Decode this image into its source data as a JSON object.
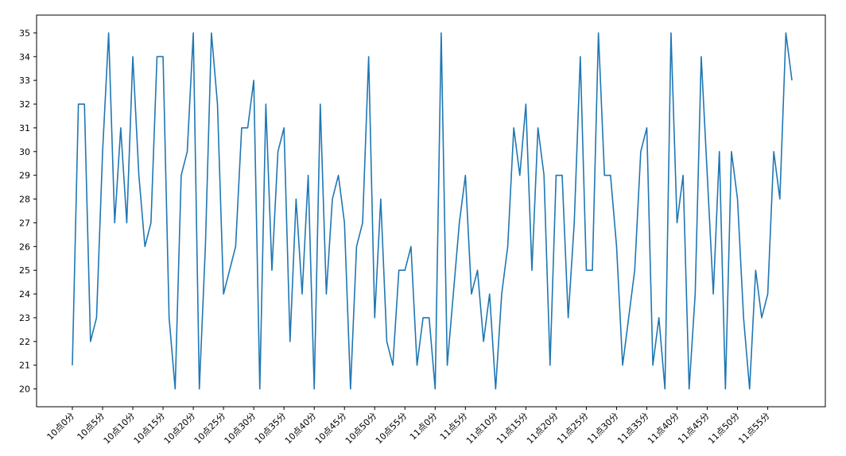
{
  "chart_data": {
    "type": "line",
    "title": "",
    "xlabel": "",
    "ylabel": "",
    "x_tick_labels": [
      "10点0分",
      "10点5分",
      "10点10分",
      "10点15分",
      "10点20分",
      "10点25分",
      "10点30分",
      "10点35分",
      "10点40分",
      "10点45分",
      "10点50分",
      "10点55分",
      "11点0分",
      "11点5分",
      "11点10分",
      "11点15分",
      "11点20分",
      "11点25分",
      "11点30分",
      "11点35分",
      "11点40分",
      "11点45分",
      "11点50分",
      "11点55分"
    ],
    "x_tick_every": 5,
    "y_ticks": [
      20,
      21,
      22,
      23,
      24,
      25,
      26,
      27,
      28,
      29,
      30,
      31,
      32,
      33,
      34,
      35
    ],
    "ylim": [
      19.25,
      35.75
    ],
    "grid": false,
    "series": [
      {
        "color": "#1f77b4",
        "values": [
          21,
          32,
          32,
          22,
          23,
          30,
          35,
          27,
          31,
          27,
          34,
          29,
          26,
          27,
          34,
          34,
          23,
          20,
          29,
          30,
          35,
          20,
          26,
          35,
          32,
          24,
          25,
          26,
          31,
          31,
          33,
          20,
          32,
          25,
          30,
          31,
          22,
          28,
          24,
          29,
          20,
          32,
          24,
          28,
          29,
          27,
          20,
          26,
          27,
          34,
          23,
          28,
          22,
          21,
          25,
          25,
          26,
          21,
          23,
          23,
          20,
          35,
          21,
          24,
          27,
          29,
          24,
          25,
          22,
          24,
          20,
          24,
          26,
          31,
          29,
          32,
          25,
          31,
          29,
          21,
          29,
          29,
          23,
          27,
          34,
          25,
          25,
          35,
          29,
          29,
          26,
          21,
          23,
          25,
          30,
          31,
          21,
          23,
          20,
          35,
          27,
          29,
          20,
          24,
          34,
          29,
          24,
          30,
          20,
          30,
          28,
          23,
          20,
          25,
          23,
          24,
          30,
          28,
          35,
          33
        ]
      }
    ]
  }
}
